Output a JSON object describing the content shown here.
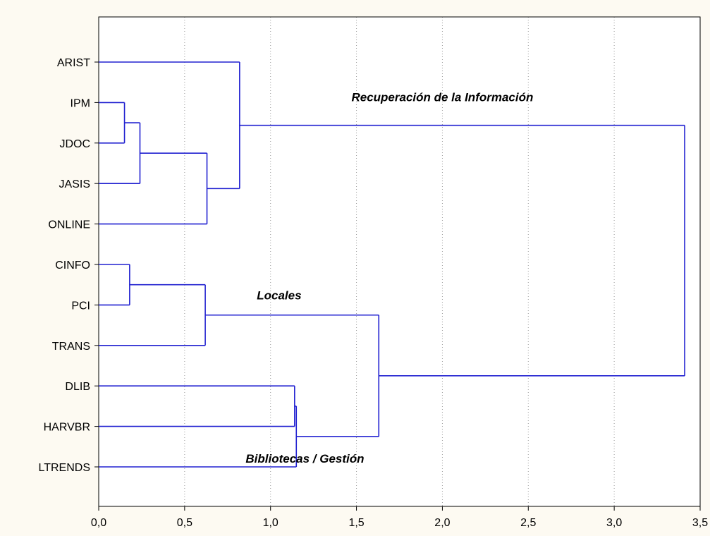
{
  "chart_data": {
    "type": "dendrogram",
    "orientation": "horizontal",
    "leaves": [
      "ARIST",
      "IPM",
      "JDOC",
      "JASIS",
      "ONLINE",
      "CINFO",
      "PCI",
      "TRANS",
      "DLIB",
      "HARVBR",
      "LTRENDS"
    ],
    "merges": [
      {
        "left": "IPM",
        "right": "JDOC",
        "height": 0.15
      },
      {
        "left": "CINFO",
        "right": "PCI",
        "height": 0.18
      },
      {
        "left": "IPM+JDOC",
        "right": "JASIS",
        "height": 0.24
      },
      {
        "left": "CINFO+PCI",
        "right": "TRANS",
        "height": 0.62
      },
      {
        "left": "IPM+JDOC+JASIS",
        "right": "ONLINE",
        "height": 0.63
      },
      {
        "left": "ARIST",
        "right": "IPM+JDOC+JASIS+ONLINE",
        "height": 0.82
      },
      {
        "left": "DLIB",
        "right": "HARVBR",
        "height": 1.14
      },
      {
        "left": "DLIB+HARVBR",
        "right": "LTRENDS",
        "height": 1.15
      },
      {
        "left": "CINFO+PCI+TRANS",
        "right": "DLIB+HARVBR+LTRENDS",
        "height": 1.63
      },
      {
        "left": "ARIST+IPM+JDOC+JASIS+ONLINE",
        "right": "CINFO+PCI+TRANS+DLIB+HARVBR+LTRENDS",
        "height": 3.41
      }
    ],
    "xticks": [
      "0,0",
      "0,5",
      "1,0",
      "1,5",
      "2,0",
      "2,5",
      "3,0",
      "3,5"
    ],
    "xlim": [
      0,
      3.5
    ],
    "grid": {
      "x": true,
      "y": false
    },
    "line_color": "#2020d0",
    "background": "#ffffff",
    "annotations": [
      {
        "text": "Recuperación de la Información",
        "anchor_height": 2.0,
        "near_leaf": "IPM"
      },
      {
        "text": "Locales",
        "anchor_height": 1.05,
        "near_leaf": "PCI"
      },
      {
        "text": "Bibliotecas / Gestión",
        "anchor_height": 1.2,
        "near_leaf": "LTRENDS"
      }
    ]
  }
}
